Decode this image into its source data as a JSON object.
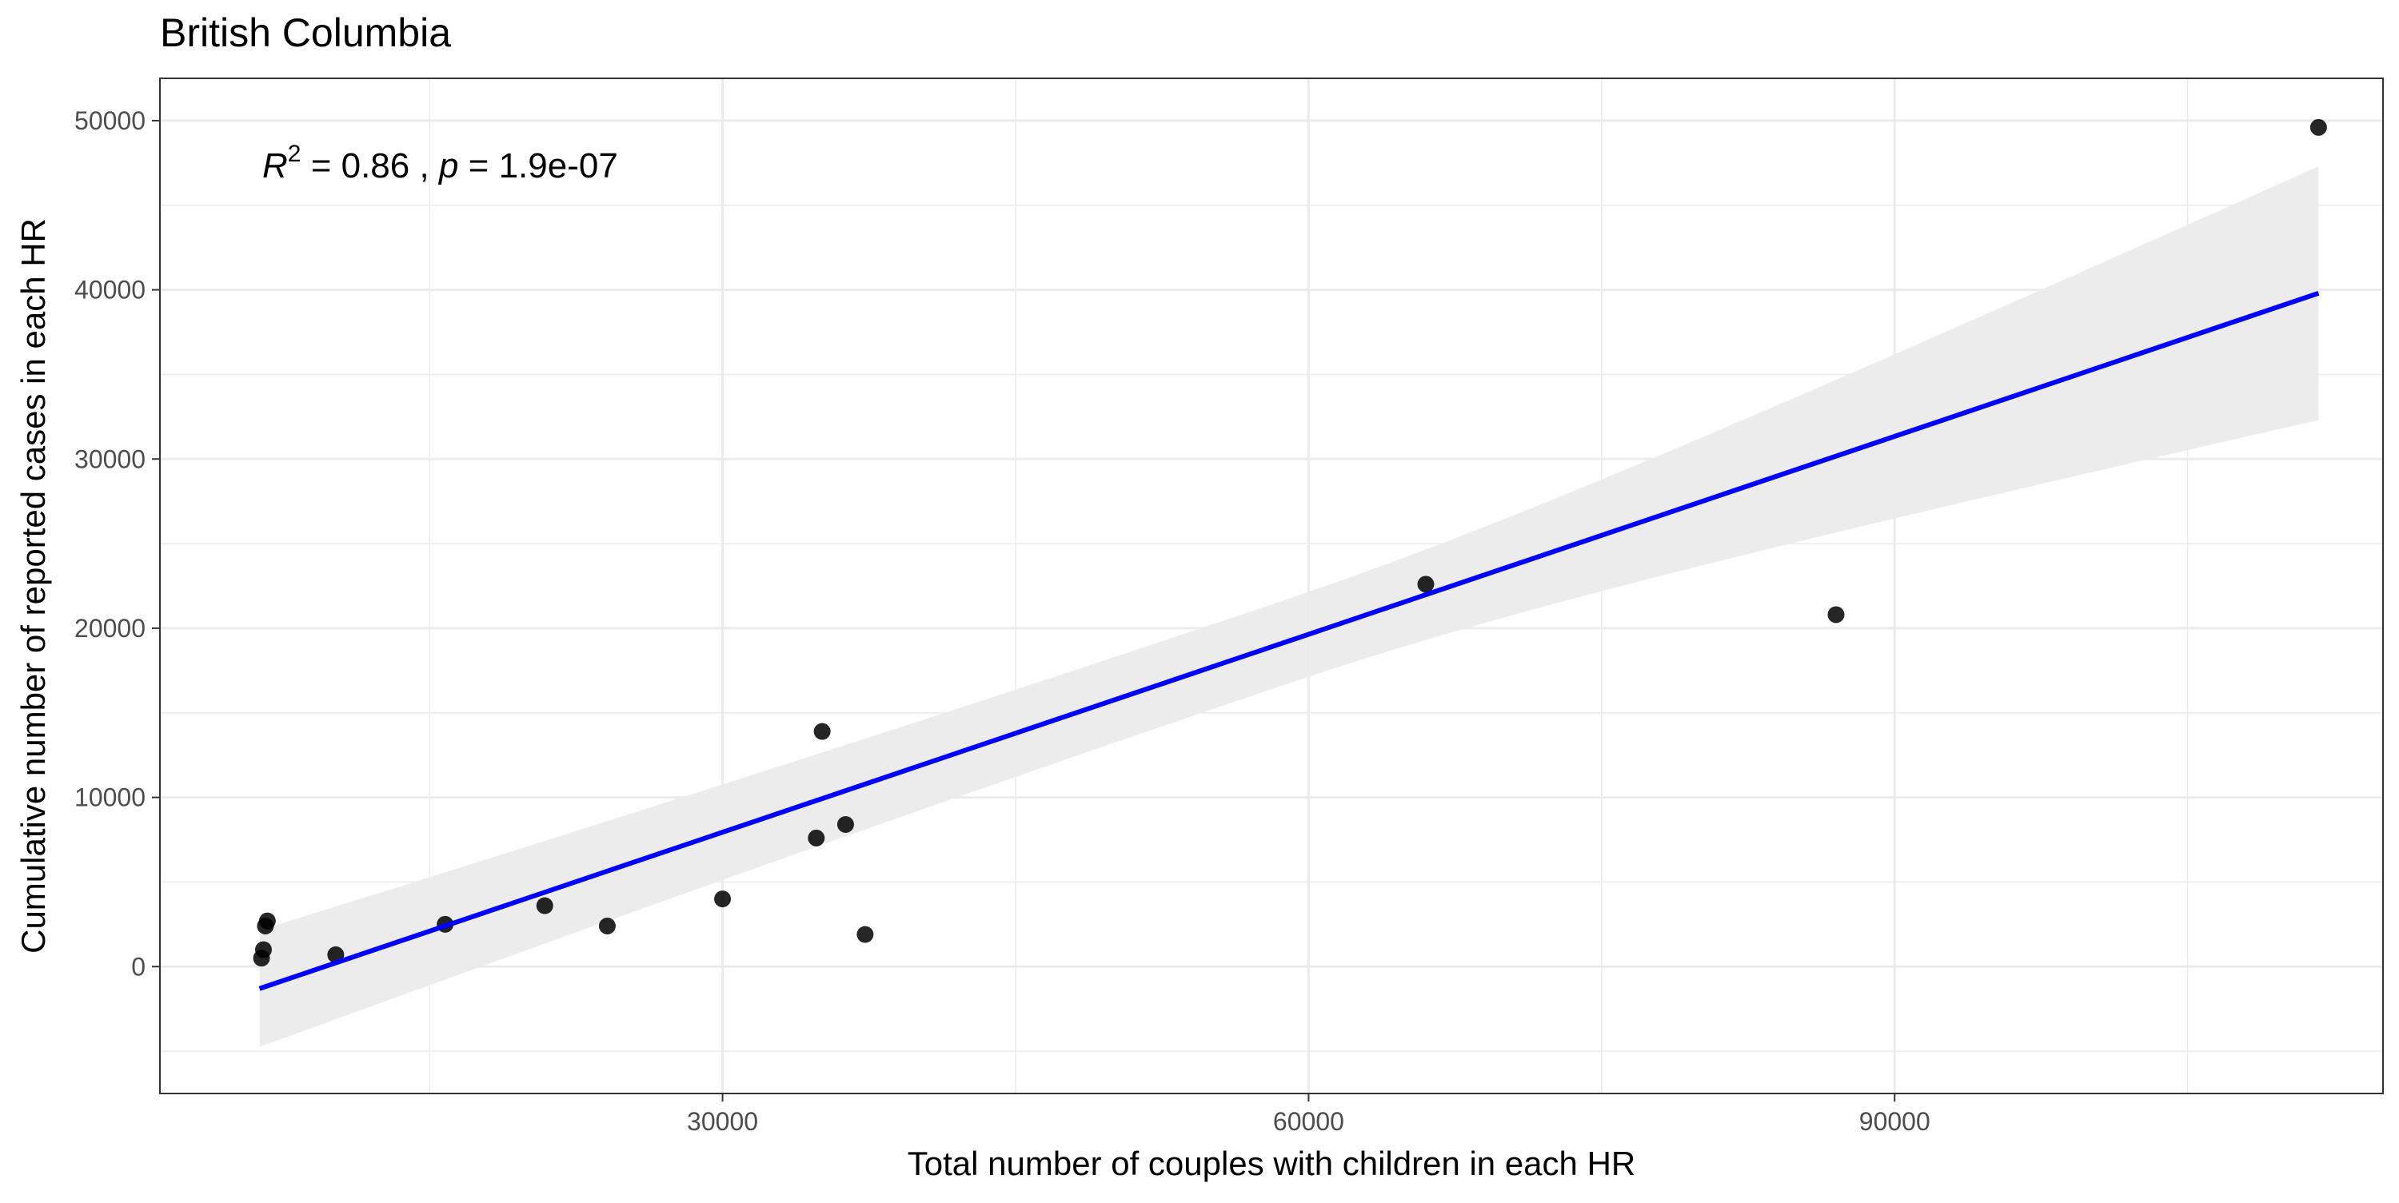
{
  "chart_data": {
    "type": "scatter",
    "title": "British Columbia",
    "xlabel": "Total number of couples with children in each HR",
    "ylabel": "Cumulative number of reported cases in each HR",
    "xlim": [
      1200,
      115000
    ],
    "ylim": [
      -7500,
      52500
    ],
    "x_ticks": [
      30000,
      60000,
      90000
    ],
    "x_tick_labels": [
      "30000",
      "60000",
      "90000"
    ],
    "x_minor_ticks": [
      15000,
      45000,
      75000,
      105000
    ],
    "y_ticks": [
      0,
      10000,
      20000,
      30000,
      40000,
      50000
    ],
    "y_tick_labels": [
      "0",
      "10000",
      "20000",
      "30000",
      "40000",
      "50000"
    ],
    "y_minor_ticks": [
      -5000,
      5000,
      15000,
      25000,
      35000,
      45000
    ],
    "grid": true,
    "annotation": {
      "r_symbol": "R",
      "r_exponent": "2",
      "r_value": " = 0.86",
      "separator": " , ",
      "p_symbol": "p",
      "p_value": " = 1.9e-07"
    },
    "points": [
      {
        "x": 6400,
        "y": 500
      },
      {
        "x": 6500,
        "y": 1000
      },
      {
        "x": 6600,
        "y": 2400
      },
      {
        "x": 6700,
        "y": 2700
      },
      {
        "x": 10200,
        "y": 700
      },
      {
        "x": 15800,
        "y": 2500
      },
      {
        "x": 20900,
        "y": 3600
      },
      {
        "x": 24100,
        "y": 2400
      },
      {
        "x": 30000,
        "y": 4000
      },
      {
        "x": 34800,
        "y": 7600
      },
      {
        "x": 35100,
        "y": 13900
      },
      {
        "x": 36300,
        "y": 8400
      },
      {
        "x": 37300,
        "y": 1900
      },
      {
        "x": 66000,
        "y": 22600
      },
      {
        "x": 87000,
        "y": 20800
      },
      {
        "x": 111700,
        "y": 49600
      }
    ],
    "fit_line": {
      "x": [
        6300,
        111700
      ],
      "y": [
        -1300,
        39800
      ],
      "color": "#0000ff"
    },
    "confidence_band": {
      "x": [
        6300,
        111700
      ],
      "lower": [
        -4700,
        32300
      ],
      "upper": [
        2200,
        47300
      ],
      "color": "#ebebeb"
    },
    "point_color": "#000000"
  }
}
